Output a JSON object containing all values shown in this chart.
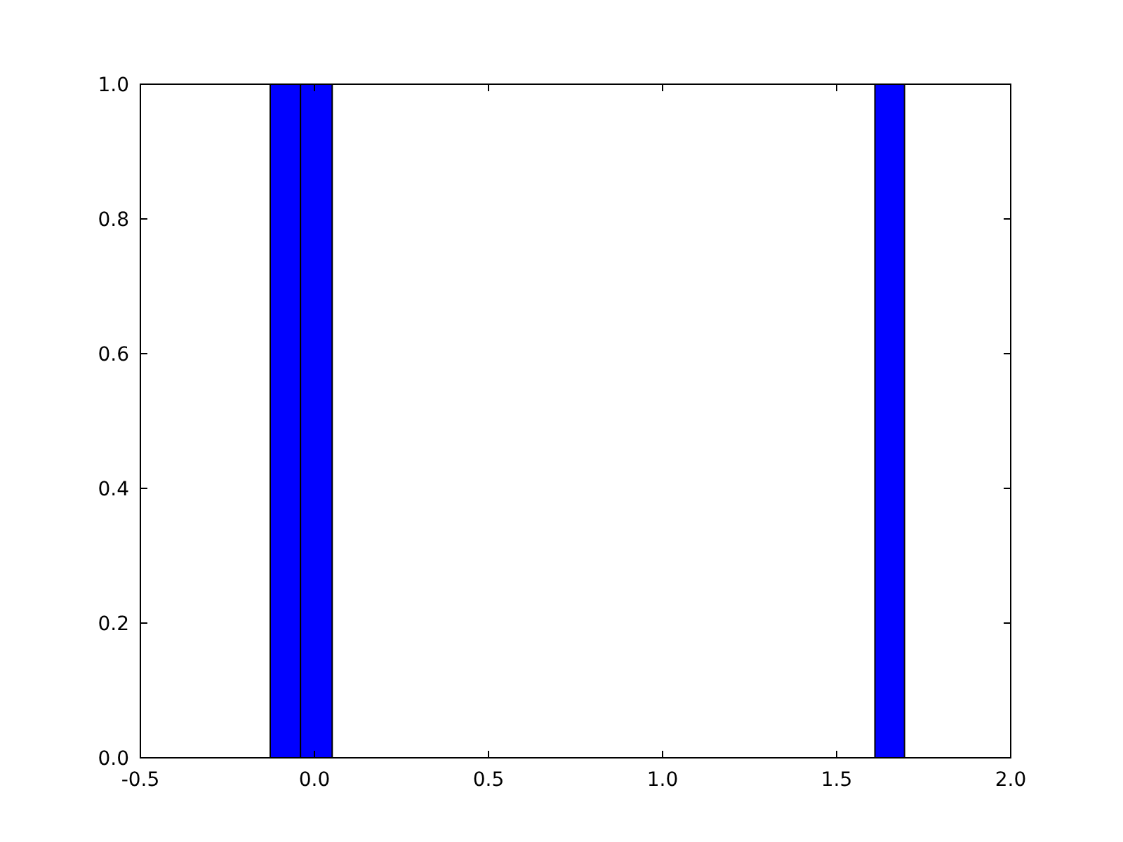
{
  "chart_data": {
    "type": "histogram",
    "bins": [
      -0.127,
      -0.04,
      0.051,
      1.61,
      1.695
    ],
    "values": [
      1,
      1,
      0,
      1
    ],
    "color": "#0000ff",
    "xlim": [
      -0.5,
      2.0
    ],
    "ylim": [
      0,
      1.0
    ],
    "xticks": [
      {
        "value": -0.5,
        "label": "-0.5"
      },
      {
        "value": 0,
        "label": "0.0"
      },
      {
        "value": 0.5,
        "label": "0.5"
      },
      {
        "value": 1,
        "label": "1.0"
      },
      {
        "value": 1.5,
        "label": "1.5"
      },
      {
        "value": 2,
        "label": "2.0"
      }
    ],
    "yticks": [
      {
        "value": 0,
        "label": "0.0"
      },
      {
        "value": 0.2,
        "label": "0.2"
      },
      {
        "value": 0.4,
        "label": "0.4"
      },
      {
        "value": 0.6,
        "label": "0.6"
      },
      {
        "value": 0.8,
        "label": "0.8"
      },
      {
        "value": 1,
        "label": "1.0"
      }
    ]
  }
}
